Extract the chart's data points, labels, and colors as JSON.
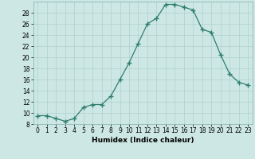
{
  "x": [
    0,
    1,
    2,
    3,
    4,
    5,
    6,
    7,
    8,
    9,
    10,
    11,
    12,
    13,
    14,
    15,
    16,
    17,
    18,
    19,
    20,
    21,
    22,
    23
  ],
  "y": [
    9.5,
    9.5,
    9.0,
    8.5,
    9.0,
    11.0,
    11.5,
    11.5,
    13.0,
    16.0,
    19.0,
    22.5,
    26.0,
    27.0,
    29.5,
    29.5,
    29.0,
    28.5,
    25.0,
    24.5,
    20.5,
    17.0,
    15.5,
    15.0
  ],
  "line_color": "#2e7d6e",
  "marker": "+",
  "marker_size": 4,
  "xlabel": "Humidex (Indice chaleur)",
  "ylim": [
    8,
    30
  ],
  "xlim": [
    -0.5,
    23.5
  ],
  "yticks": [
    8,
    10,
    12,
    14,
    16,
    18,
    20,
    22,
    24,
    26,
    28
  ],
  "xticks": [
    0,
    1,
    2,
    3,
    4,
    5,
    6,
    7,
    8,
    9,
    10,
    11,
    12,
    13,
    14,
    15,
    16,
    17,
    18,
    19,
    20,
    21,
    22,
    23
  ],
  "bg_color": "#cde8e4",
  "grid_color": "#b0d0cb",
  "tick_label_size": 5.5,
  "xlabel_size": 6.5,
  "linewidth": 0.9
}
